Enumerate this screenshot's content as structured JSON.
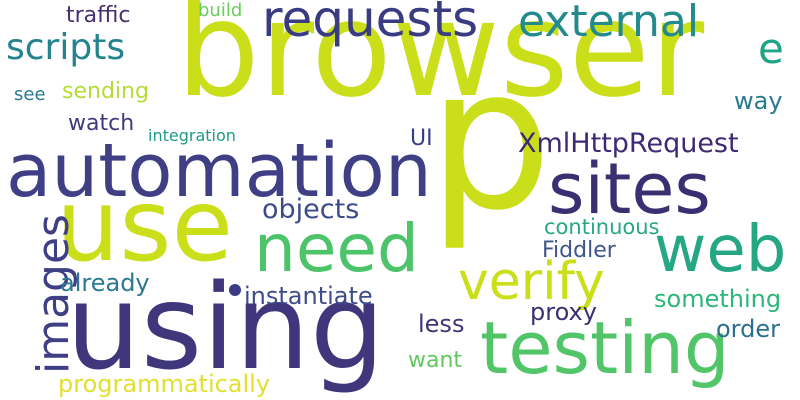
{
  "words": [
    {
      "text": "browser",
      "color": "#cadf1a"
    },
    {
      "text": "p",
      "color": "#cadf1a"
    },
    {
      "text": "using",
      "color": "#40367c"
    },
    {
      "text": "automation",
      "color": "#3e3f84"
    },
    {
      "text": "use",
      "color": "#cadf1a"
    },
    {
      "text": "testing",
      "color": "#52c569"
    },
    {
      "text": "need",
      "color": "#4ec46a"
    },
    {
      "text": "web",
      "color": "#25a783"
    },
    {
      "text": "sites",
      "color": "#3a2f71"
    },
    {
      "text": "verify",
      "color": "#cadf1a"
    },
    {
      "text": "requests",
      "color": "#3a3c82"
    },
    {
      "text": "external",
      "color": "#238a8d"
    },
    {
      "text": "images",
      "color": "#3f3f85"
    },
    {
      "text": "scripts",
      "color": "#23848d"
    },
    {
      "text": "e",
      "color": "#20a486"
    },
    {
      "text": "XmlHttpRequest",
      "color": "#3d2974"
    },
    {
      "text": "objects",
      "color": "#3c4b88"
    },
    {
      "text": "instantiate",
      "color": "#3f4c89"
    },
    {
      "text": "traffic",
      "color": "#46306f"
    },
    {
      "text": "build",
      "color": "#6ccb5e"
    },
    {
      "text": "sending",
      "color": "#b5dc36"
    },
    {
      "text": "see",
      "color": "#2a7a8e"
    },
    {
      "text": "watch",
      "color": "#3f3a7d"
    },
    {
      "text": "integration",
      "color": "#1e9a89"
    },
    {
      "text": "UI",
      "color": "#3a3e83"
    },
    {
      "text": "way",
      "color": "#297a8e"
    },
    {
      "text": "continuous",
      "color": "#26a884"
    },
    {
      "text": "Fiddler",
      "color": "#3e5689"
    },
    {
      "text": "already",
      "color": "#2a798e"
    },
    {
      "text": "something",
      "color": "#2db67a"
    },
    {
      "text": "proxy",
      "color": "#3d2f74"
    },
    {
      "text": "less",
      "color": "#433575"
    },
    {
      "text": "order",
      "color": "#2d708e"
    },
    {
      "text": "want",
      "color": "#61c860"
    },
    {
      "text": "programmatically",
      "color": "#e1e032"
    }
  ]
}
